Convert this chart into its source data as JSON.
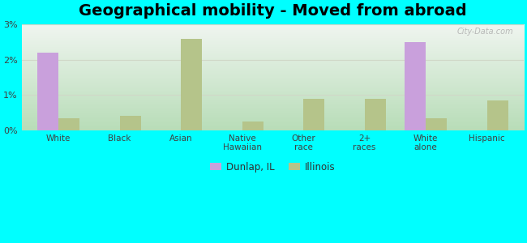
{
  "title": "Geographical mobility - Moved from abroad",
  "categories": [
    "White",
    "Black",
    "Asian",
    "Native\nHawaiian",
    "Other\nrace",
    "2+\nraces",
    "White\nalone",
    "Hispanic"
  ],
  "dunlap_values": [
    2.2,
    0,
    0,
    0,
    0,
    0,
    2.5,
    0
  ],
  "illinois_values": [
    0.35,
    0.4,
    2.6,
    0.25,
    0.9,
    0.9,
    0.35,
    0.85
  ],
  "dunlap_color": "#c9a0dc",
  "illinois_color": "#b5c48a",
  "background_color": "#00ffff",
  "gradient_bottom": "#b8ddb8",
  "gradient_top": "#f0f5f0",
  "ylim": [
    0,
    3.0
  ],
  "yticks": [
    0,
    1,
    2,
    3
  ],
  "ytick_labels": [
    "0%",
    "1%",
    "2%",
    "3%"
  ],
  "bar_width": 0.35,
  "title_fontsize": 14,
  "legend_labels": [
    "Dunlap, IL",
    "Illinois"
  ],
  "grid_color": "#d0d8c8",
  "tick_color": "#404040"
}
